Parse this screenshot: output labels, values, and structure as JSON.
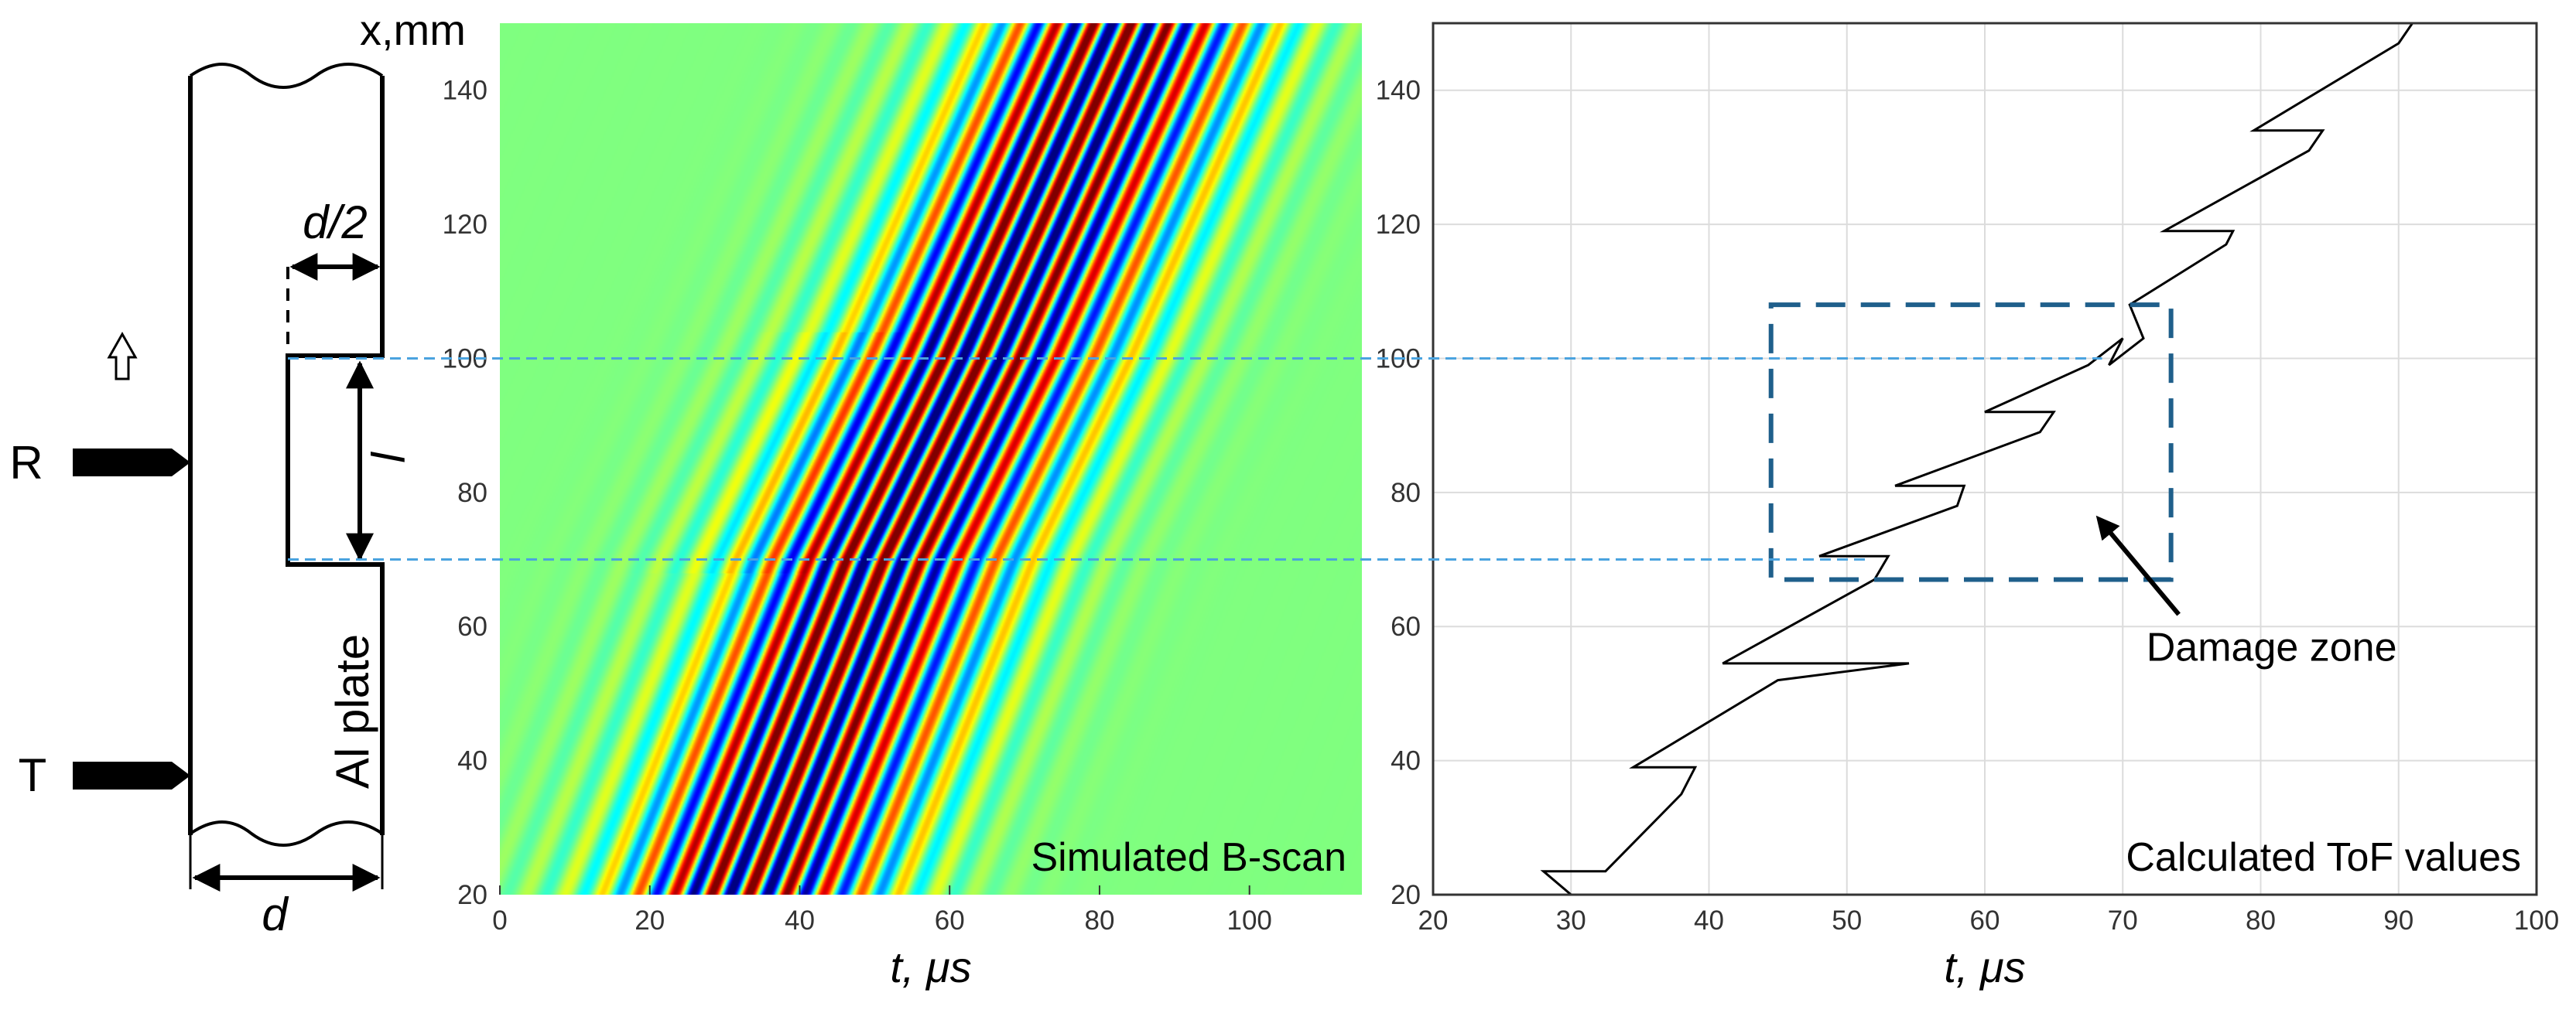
{
  "figure": {
    "y_axis_label": "x,mm",
    "diagram": {
      "labels": {
        "receiver": "R",
        "transmitter": "T",
        "half_thickness": "d/2",
        "thickness": "d",
        "damage_length": "l",
        "plate": "Al plate"
      }
    }
  },
  "chart_data": [
    {
      "type": "heatmap",
      "title": "Simulated B-scan",
      "xlabel": "t, μs",
      "ylabel": "x,mm",
      "xlim": [
        0,
        115
      ],
      "ylim": [
        20,
        150
      ],
      "xticks": [
        "0",
        "20",
        "40",
        "60",
        "80",
        "100"
      ],
      "yticks": [
        "20",
        "40",
        "60",
        "80",
        "100",
        "120",
        "140"
      ],
      "grid": false,
      "colormap": "jet",
      "background_color": "#00ffff",
      "wave_packet": {
        "front_t_at_x": [
          [
            20,
            32
          ],
          [
            70,
            50
          ],
          [
            100,
            63
          ],
          [
            150,
            83
          ]
        ],
        "carrier_period_us": 5.0,
        "envelope_half_width_us": 14
      }
    },
    {
      "type": "line",
      "title": "Calculated ToF values",
      "xlabel": "t, μs",
      "ylabel": "",
      "xlim": [
        20,
        100
      ],
      "ylim": [
        20,
        150
      ],
      "xticks": [
        "20",
        "30",
        "40",
        "50",
        "60",
        "70",
        "80",
        "90",
        "100"
      ],
      "yticks": [
        "20",
        "40",
        "60",
        "80",
        "100",
        "120",
        "140"
      ],
      "grid": true,
      "series": [
        {
          "color": "#000000",
          "points": [
            [
              30,
              20
            ],
            [
              28,
              23.5
            ],
            [
              32.5,
              23.5
            ],
            [
              38,
              35
            ],
            [
              39,
              39
            ],
            [
              34.5,
              39
            ],
            [
              45,
              52
            ],
            [
              54.5,
              54.5
            ],
            [
              41,
              54.5
            ],
            [
              52,
              67
            ],
            [
              53,
              70.5
            ],
            [
              48,
              70.5
            ],
            [
              58,
              78
            ],
            [
              58.5,
              81
            ],
            [
              53.5,
              81
            ],
            [
              64,
              89
            ],
            [
              65,
              92
            ],
            [
              60,
              92
            ],
            [
              67.5,
              99
            ],
            [
              70,
              103
            ],
            [
              69,
              99
            ],
            [
              71.5,
              103
            ],
            [
              70.5,
              108
            ],
            [
              77.5,
              117
            ],
            [
              78,
              119
            ],
            [
              73,
              119
            ],
            [
              83.5,
              131
            ],
            [
              84.5,
              134
            ],
            [
              79.5,
              134
            ],
            [
              90,
              147
            ],
            [
              91,
              150
            ],
            [
              87.5,
              150
            ]
          ]
        }
      ],
      "annotations": [
        {
          "kind": "dashed-rectangle",
          "label": "Damage zone",
          "x_range": [
            44.5,
            73.5
          ],
          "y_range": [
            67,
            108
          ],
          "color": "#1f5f8b"
        }
      ]
    }
  ],
  "guides": [
    {
      "kind": "dashed-horizontal",
      "y": 100,
      "color": "#4aa3df"
    },
    {
      "kind": "dashed-horizontal",
      "y": 70,
      "color": "#4aa3df"
    }
  ]
}
